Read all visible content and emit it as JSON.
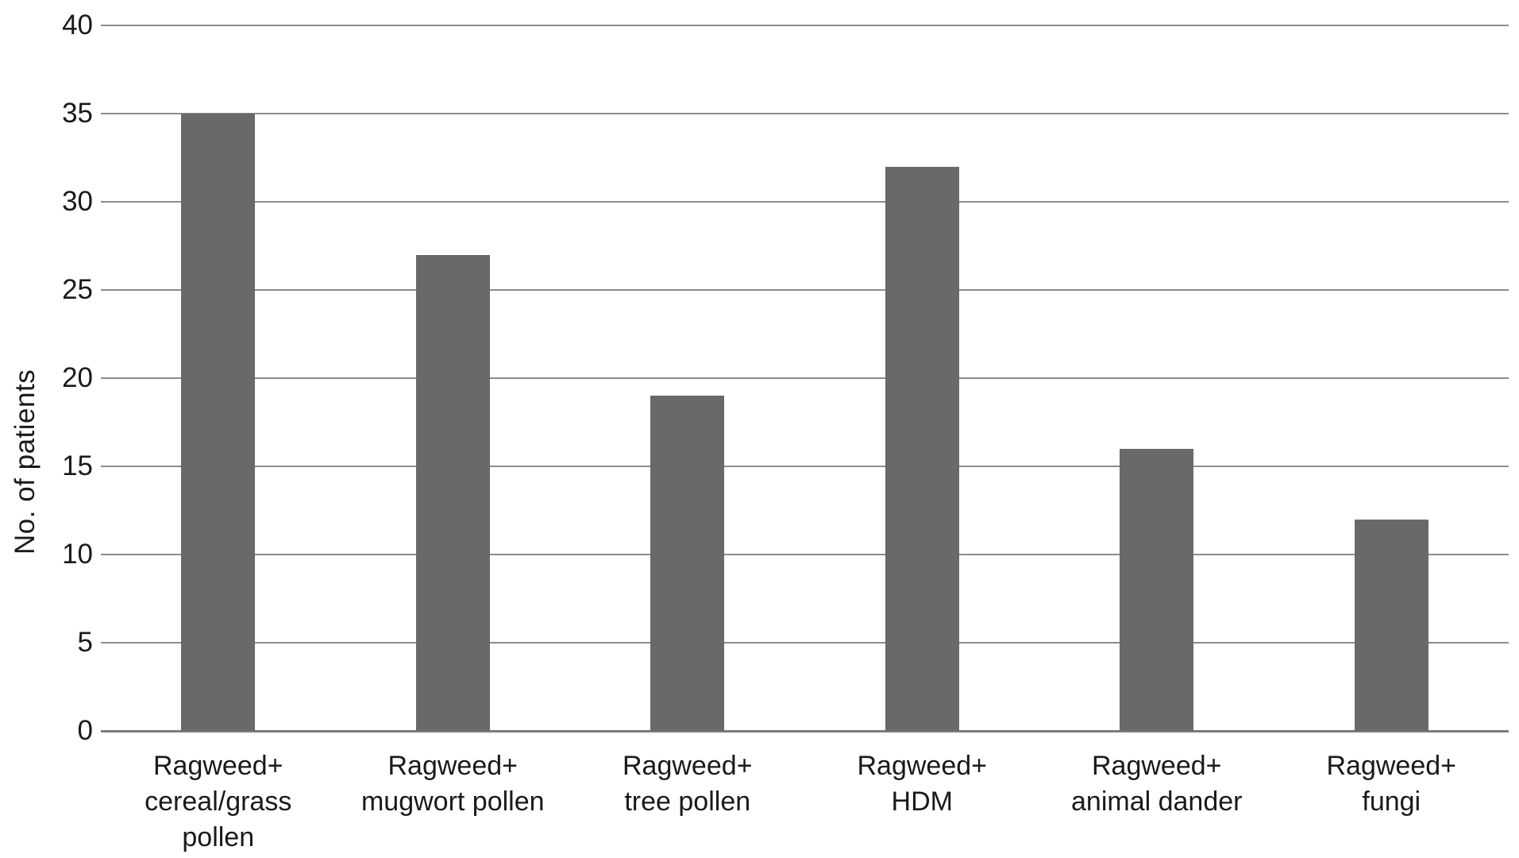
{
  "chart_data": {
    "type": "bar",
    "ylabel": "No. of patients",
    "ylim": [
      0,
      40
    ],
    "ytick_step": 5,
    "ytick_labels": [
      "0",
      "5",
      "10",
      "15",
      "20",
      "25",
      "30",
      "35",
      "40"
    ],
    "grid": true,
    "legend": false,
    "categories": [
      {
        "label": "Ragweed+ cereal/grass pollen",
        "lines": [
          "Ragweed+",
          "cereal/grass",
          "pollen"
        ]
      },
      {
        "label": "Ragweed+ mugwort pollen",
        "lines": [
          "Ragweed+",
          "mugwort pollen"
        ]
      },
      {
        "label": "Ragweed+ tree pollen",
        "lines": [
          "Ragweed+",
          "tree pollen"
        ]
      },
      {
        "label": "Ragweed+ HDM",
        "lines": [
          "Ragweed+",
          "HDM"
        ]
      },
      {
        "label": "Ragweed+ animal dander",
        "lines": [
          "Ragweed+",
          "animal dander"
        ]
      },
      {
        "label": "Ragweed+ fungi",
        "lines": [
          "Ragweed+",
          "fungi"
        ]
      }
    ],
    "values": [
      35,
      27,
      19,
      32,
      16,
      12
    ],
    "colors": {
      "bar": "#696969",
      "gridline": "#8c8c8c",
      "zero_line": "#7c7c7c",
      "text": "#1a1a1a",
      "background": "#ffffff"
    }
  }
}
